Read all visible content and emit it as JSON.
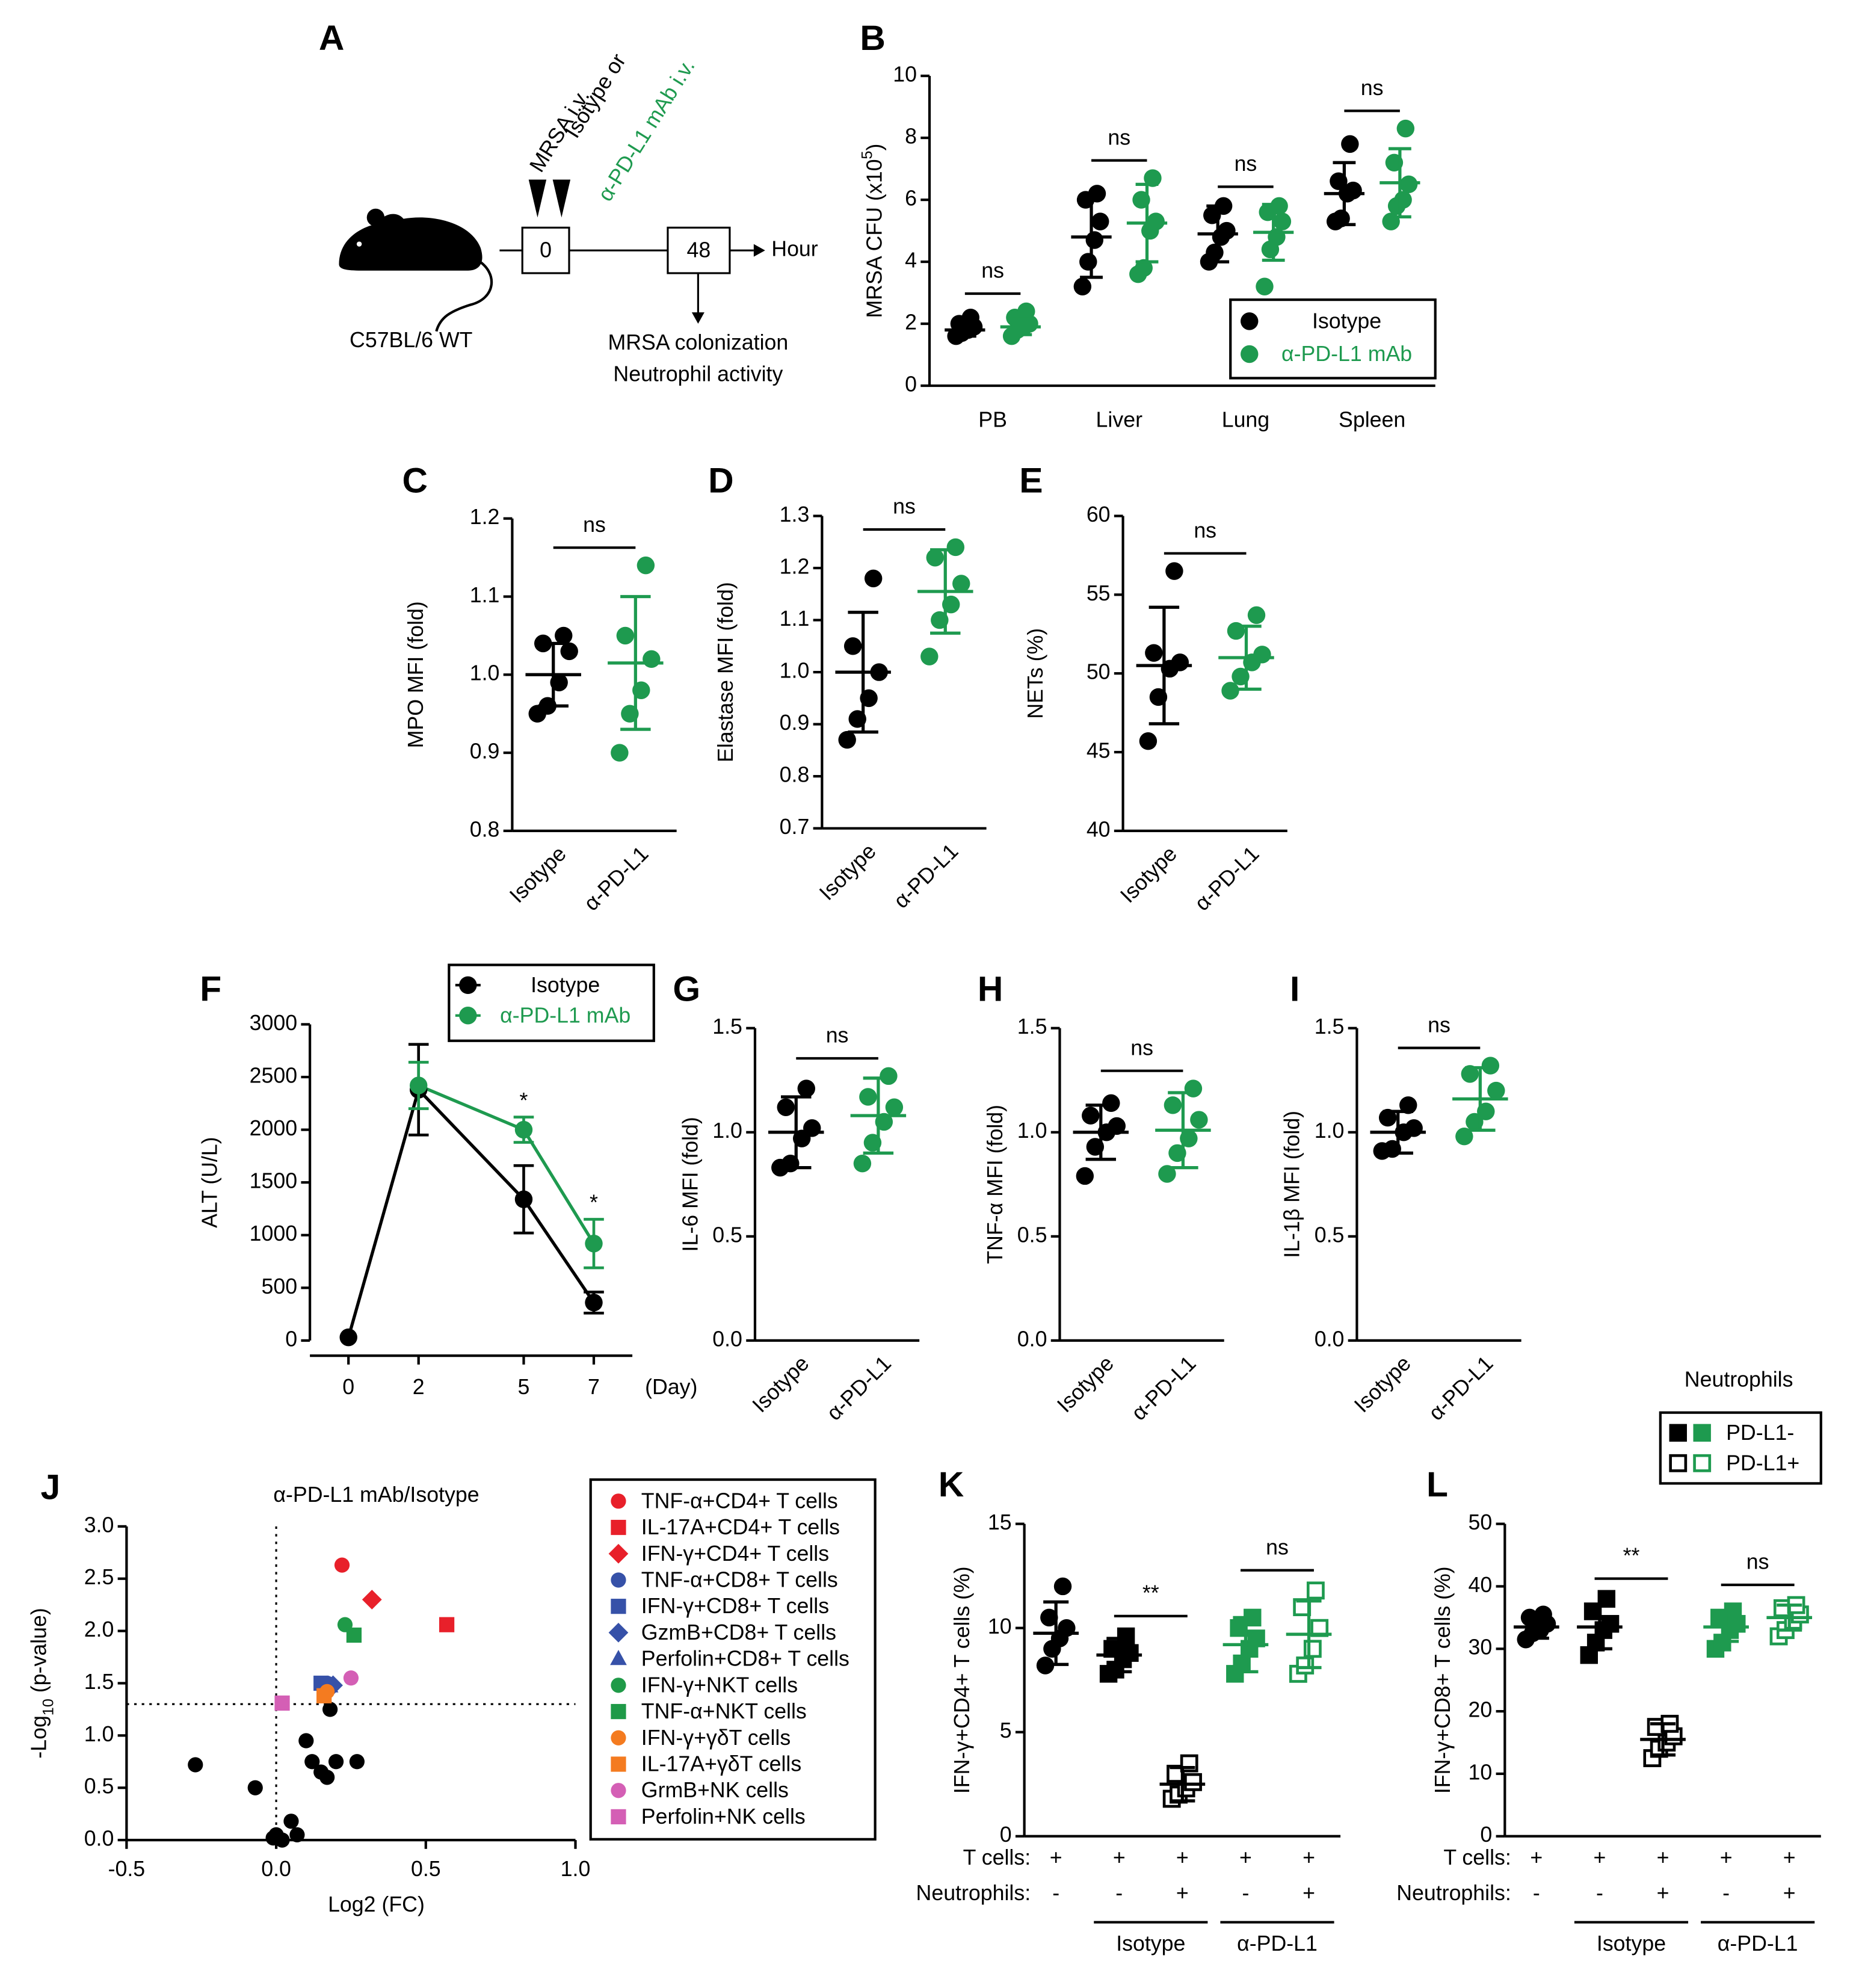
{
  "diagram_a": {
    "panel": "A",
    "strain": "C57BL/6 WT",
    "injection_1": "MRSA i.v.",
    "injection_2_line1": "Isotype or",
    "injection_2_line2": "α-PD-L1 mAb i.v.",
    "time_start": 0,
    "time_end": 48,
    "time_unit": "Hour",
    "readout_1": "MRSA colonization",
    "readout_2": "Neutrophil activity"
  },
  "chart_data": [
    {
      "type": "dot",
      "panel": "B",
      "ylabel": [
        "MRSA CFU (x10",
        "5",
        ")"
      ],
      "categories": [
        "PB",
        "Liver",
        "Lung",
        "Spleen"
      ],
      "ylim": [
        0,
        10
      ],
      "yticks": [
        0,
        2,
        4,
        6,
        8,
        10
      ],
      "legend": "lower right",
      "series": [
        {
          "name": "Isotype",
          "color": "#000000",
          "points": [
            [
              1.6,
              1.7,
              1.8,
              1.9,
              2.0,
              2.2
            ],
            [
              3.2,
              4.0,
              4.7,
              5.3,
              6.0,
              6.2
            ],
            [
              4.0,
              4.3,
              4.8,
              5.0,
              5.5,
              5.8
            ],
            [
              5.3,
              5.4,
              6.2,
              6.3,
              6.6,
              7.8
            ]
          ],
          "mean": [
            1.8,
            4.8,
            4.9,
            6.2
          ],
          "sd": [
            0.2,
            1.3,
            0.9,
            1.0
          ]
        },
        {
          "name": "α-PD-L1 mAb",
          "color": "#1e9a4f",
          "points": [
            [
              1.6,
              1.8,
              1.9,
              2.0,
              2.2,
              2.4
            ],
            [
              3.6,
              3.8,
              5.0,
              5.3,
              6.0,
              6.7
            ],
            [
              3.2,
              4.4,
              4.8,
              5.3,
              5.6,
              5.8
            ],
            [
              5.3,
              5.8,
              6.0,
              6.5,
              7.2,
              8.3
            ]
          ],
          "mean": [
            1.9,
            5.25,
            4.95,
            6.55
          ],
          "sd": [
            0.25,
            1.25,
            0.9,
            1.1
          ]
        }
      ],
      "annotations": [
        "ns",
        "ns",
        "ns",
        "ns"
      ]
    },
    {
      "type": "dot",
      "panel": "C",
      "ylabel": "MPO MFI (fold)",
      "categories": [
        "Isotype",
        "α-PD-L1"
      ],
      "colors": [
        "#000000",
        "#1e9a4f"
      ],
      "ylim": [
        0.8,
        1.2
      ],
      "yticks": [
        0.8,
        0.9,
        {
          "value": 1,
          "label": "1.0"
        },
        1.1,
        1.2
      ],
      "points": [
        [
          0.95,
          0.96,
          0.99,
          1.03,
          1.04,
          1.05
        ],
        [
          0.9,
          0.95,
          0.98,
          1.02,
          1.05,
          1.14
        ]
      ],
      "mean": [
        1.0,
        1.015
      ],
      "sd": [
        0.04,
        0.085
      ],
      "annotation": "ns"
    },
    {
      "type": "dot",
      "panel": "D",
      "ylabel": "Elastase MFI (fold)",
      "categories": [
        "Isotype",
        "α-PD-L1"
      ],
      "colors": [
        "#000000",
        "#1e9a4f"
      ],
      "ylim": [
        0.7,
        1.3
      ],
      "yticks": [
        0.7,
        0.8,
        0.9,
        {
          "value": 1,
          "label": "1.0"
        },
        1.1,
        1.2,
        1.3
      ],
      "points": [
        [
          0.87,
          0.91,
          0.95,
          1.0,
          1.05,
          1.18
        ],
        [
          1.03,
          1.1,
          1.13,
          1.17,
          1.22,
          1.24
        ]
      ],
      "mean": [
        1.0,
        1.155
      ],
      "sd": [
        0.115,
        0.08
      ],
      "annotation": "ns"
    },
    {
      "type": "dot",
      "panel": "E",
      "ylabel": "NETs (%)",
      "categories": [
        "Isotype",
        "α-PD-L1"
      ],
      "colors": [
        "#000000",
        "#1e9a4f"
      ],
      "ylim": [
        40,
        60
      ],
      "yticks": [
        40,
        45,
        50,
        55,
        60
      ],
      "points": [
        [
          45.7,
          48.5,
          50.3,
          50.7,
          51.3,
          56.5
        ],
        [
          48.9,
          49.8,
          50.7,
          51.2,
          52.7,
          53.7
        ]
      ],
      "mean": [
        50.5,
        51.0
      ],
      "sd": [
        3.7,
        2.0
      ],
      "annotation": "ns"
    },
    {
      "type": "line",
      "panel": "F",
      "ylabel": "ALT (U/L)",
      "xlabel": "(Day)",
      "x": [
        0,
        2,
        5,
        7
      ],
      "xlim": [
        -1.1,
        8.1
      ],
      "xticks": [
        0,
        2,
        5,
        7
      ],
      "ylim": [
        0,
        3000
      ],
      "yticks": [
        0,
        500,
        1000,
        1500,
        2000,
        2500,
        3000
      ],
      "legend": "upper right",
      "series": [
        {
          "name": "Isotype",
          "color": "#000000",
          "values": [
            30,
            2380,
            1340,
            360
          ],
          "errors": [
            0,
            430,
            320,
            100
          ]
        },
        {
          "name": "α-PD-L1 mAb",
          "color": "#1e9a4f",
          "values": [
            null,
            2420,
            2000,
            920
          ],
          "errors": [
            null,
            220,
            120,
            230
          ]
        }
      ],
      "annotations": [
        null,
        null,
        "*",
        "*"
      ]
    },
    {
      "type": "dot",
      "panel": "G",
      "ylabel": "IL-6 MFI (fold)",
      "categories": [
        "Isotype",
        "α-PD-L1"
      ],
      "colors": [
        "#000000",
        "#1e9a4f"
      ],
      "ylim": [
        0,
        1.5
      ],
      "yticks": [
        {
          "value": 0,
          "label": "0.0"
        },
        0.5,
        {
          "value": 1,
          "label": "1.0"
        },
        1.5
      ],
      "points": [
        [
          0.83,
          0.85,
          0.97,
          1.02,
          1.12,
          1.21
        ],
        [
          0.85,
          0.95,
          1.05,
          1.12,
          1.17,
          1.27
        ]
      ],
      "mean": [
        1.0,
        1.08
      ],
      "sd": [
        0.17,
        0.18
      ],
      "annotation": "ns"
    },
    {
      "type": "dot",
      "panel": "H",
      "ylabel": "TNF-α MFI (fold)",
      "categories": [
        "Isotype",
        "α-PD-L1"
      ],
      "colors": [
        "#000000",
        "#1e9a4f"
      ],
      "ylim": [
        0,
        1.5
      ],
      "yticks": [
        {
          "value": 0,
          "label": "0.0"
        },
        0.5,
        {
          "value": 1,
          "label": "1.0"
        },
        1.5
      ],
      "points": [
        [
          0.79,
          0.93,
          1.0,
          1.03,
          1.08,
          1.14
        ],
        [
          0.8,
          0.9,
          0.97,
          1.06,
          1.13,
          1.21
        ]
      ],
      "mean": [
        1.0,
        1.01
      ],
      "sd": [
        0.13,
        0.18
      ],
      "annotation": "ns"
    },
    {
      "type": "dot",
      "panel": "I",
      "ylabel": "IL-1β MFI (fold)",
      "categories": [
        "Isotype",
        "α-PD-L1"
      ],
      "colors": [
        "#000000",
        "#1e9a4f"
      ],
      "ylim": [
        0,
        1.5
      ],
      "yticks": [
        {
          "value": 0,
          "label": "0.0"
        },
        0.5,
        {
          "value": 1,
          "label": "1.0"
        },
        1.5
      ],
      "points": [
        [
          0.91,
          0.92,
          1.0,
          1.02,
          1.07,
          1.13
        ],
        [
          0.98,
          1.05,
          1.1,
          1.2,
          1.28,
          1.32
        ]
      ],
      "mean": [
        1.0,
        1.16
      ],
      "sd": [
        0.1,
        0.15
      ],
      "annotation": "ns"
    },
    {
      "type": "scatter",
      "panel": "J",
      "title": "α-PD-L1 mAb/Isotype",
      "xlabel": "Log2 (FC)",
      "ylabel": [
        "-Log",
        "10",
        " (p-value)"
      ],
      "xlim": [
        -0.5,
        1.0
      ],
      "xticks": [
        -0.5,
        {
          "value": 0,
          "label": "0.0"
        },
        0.5,
        {
          "value": 1,
          "label": "1.0"
        }
      ],
      "ylim": [
        0,
        3
      ],
      "yticks": [
        {
          "value": 0,
          "label": "0.0"
        },
        0.5,
        {
          "value": 1,
          "label": "1.0"
        },
        1.5,
        {
          "value": 2,
          "label": "2.0"
        },
        2.5,
        {
          "value": 3,
          "label": "3.0"
        }
      ],
      "threshold_x": 0,
      "threshold_y": 1.3,
      "legend": "right",
      "series": [
        {
          "color": "#000000",
          "marker": "circle",
          "x": [
            -0.27,
            -0.07,
            -0.01,
            0.0,
            0.02,
            0.05,
            0.07,
            0.1,
            0.12,
            0.15,
            0.17,
            0.18,
            0.2,
            0.27
          ],
          "y": [
            0.72,
            0.5,
            0.02,
            0.05,
            0.0,
            0.18,
            0.05,
            0.95,
            0.75,
            0.65,
            0.6,
            1.25,
            0.75,
            0.75
          ]
        },
        {
          "name": "TNF-α+CD4+ T cells",
          "color": "#e8202a",
          "marker": "circle",
          "x": [
            0.22
          ],
          "y": [
            2.63
          ]
        },
        {
          "name": "IL-17A+CD4+ T cells",
          "color": "#e8202a",
          "marker": "square",
          "x": [
            0.57
          ],
          "y": [
            2.06
          ]
        },
        {
          "name": "IFN-γ+CD4+ T cells",
          "color": "#e8202a",
          "marker": "diamond",
          "x": [
            0.32
          ],
          "y": [
            2.3
          ]
        },
        {
          "name": "TNF-α+CD8+ T cells",
          "color": "#3651a8",
          "marker": "circle",
          "x": [
            0.17
          ],
          "y": [
            1.5
          ]
        },
        {
          "name": "IFN-γ+CD8+ T cells",
          "color": "#3651a8",
          "marker": "square",
          "x": [
            0.15
          ],
          "y": [
            1.5
          ]
        },
        {
          "name": "GzmB+CD8+ T cells",
          "color": "#3651a8",
          "marker": "diamond",
          "x": [
            0.19
          ],
          "y": [
            1.48
          ]
        },
        {
          "name": "Perfolin+CD8+ T cells",
          "color": "#3651a8",
          "marker": "triangle",
          "x": [
            0.18
          ],
          "y": [
            1.47
          ]
        },
        {
          "name": "IFN-γ+NKT cells",
          "color": "#1f9a48",
          "marker": "circle",
          "x": [
            0.23
          ],
          "y": [
            2.06
          ]
        },
        {
          "name": "TNF-α+NKT cells",
          "color": "#1f9a48",
          "marker": "square",
          "x": [
            0.26
          ],
          "y": [
            1.96
          ]
        },
        {
          "name": "IFN-γ+γδT cells",
          "color": "#f47b20",
          "marker": "circle",
          "x": [
            0.17
          ],
          "y": [
            1.42
          ]
        },
        {
          "name": "IL-17A+γδT cells",
          "color": "#f47b20",
          "marker": "square",
          "x": [
            0.16
          ],
          "y": [
            1.38
          ]
        },
        {
          "name": "GrmB+NK cells",
          "color": "#d45fb5",
          "marker": "circle",
          "x": [
            0.25
          ],
          "y": [
            1.55
          ]
        },
        {
          "name": "Perfolin+NK cells",
          "color": "#d45fb5",
          "marker": "square",
          "x": [
            0.02
          ],
          "y": [
            1.31
          ]
        }
      ]
    },
    {
      "type": "dot",
      "panel": "K",
      "ylabel": "IFN-γ+CD4+ T cells (%)",
      "ylim": [
        0,
        15
      ],
      "yticks": [
        0,
        5,
        10,
        15
      ],
      "colors": [
        "#000000",
        "#000000",
        "#000000",
        "#1e9a4f",
        "#1e9a4f"
      ],
      "markers": [
        "circle",
        "square",
        "square-open",
        "square",
        "square-open"
      ],
      "points": [
        [
          8.2,
          9.0,
          9.5,
          10.0,
          10.5,
          12.0
        ],
        [
          7.8,
          8.0,
          8.5,
          8.8,
          9.0,
          9.6
        ],
        [
          1.8,
          2.0,
          2.3,
          2.6,
          3.0,
          3.5
        ],
        [
          7.8,
          8.3,
          9.0,
          9.5,
          10.0,
          10.5
        ],
        [
          7.8,
          8.2,
          9.0,
          10.0,
          11.0,
          11.8
        ]
      ],
      "mean": [
        9.75,
        8.7,
        2.5,
        9.2,
        9.7
      ],
      "sd": [
        1.5,
        0.8,
        0.8,
        1.3,
        1.6
      ],
      "annotations": [
        "**",
        "ns"
      ],
      "row_labels": [
        "T cells:",
        "Neutrophils:"
      ],
      "rows": [
        [
          "+",
          "+",
          "+",
          "+",
          "+"
        ],
        [
          "-",
          "-",
          "+",
          "-",
          "+"
        ]
      ],
      "group_labels": [
        "Isotype",
        "α-PD-L1"
      ]
    },
    {
      "type": "dot",
      "panel": "L",
      "ylabel": "IFN-γ+CD8+ T cells (%)",
      "ylim": [
        0,
        50
      ],
      "yticks": [
        0,
        10,
        20,
        30,
        40,
        50
      ],
      "colors": [
        "#000000",
        "#000000",
        "#000000",
        "#1e9a4f",
        "#1e9a4f"
      ],
      "markers": [
        "circle",
        "square",
        "square-open",
        "square",
        "square-open"
      ],
      "points": [
        [
          31.5,
          32.5,
          33,
          34,
          35,
          35.5
        ],
        [
          29,
          31,
          33,
          34,
          36,
          38
        ],
        [
          12.5,
          14,
          15,
          16,
          17.5,
          18
        ],
        [
          30,
          31,
          33,
          34,
          35,
          36
        ],
        [
          32,
          33,
          34.5,
          35.5,
          36.5,
          37
        ]
      ],
      "mean": [
        33.5,
        33.5,
        15.5,
        33.5,
        35
      ],
      "sd": [
        1.8,
        3.5,
        2.5,
        2.3,
        2.0
      ],
      "annotations": [
        "**",
        "ns"
      ],
      "row_labels": [
        "T cells:",
        "Neutrophils:"
      ],
      "rows": [
        [
          "+",
          "+",
          "+",
          "+",
          "+"
        ],
        [
          "-",
          "-",
          "+",
          "-",
          "+"
        ]
      ],
      "group_labels": [
        "Isotype",
        "α-PD-L1"
      ],
      "legend": {
        "title": "Neutrophils",
        "entries": [
          "PD-L1-",
          "PD-L1+"
        ]
      }
    }
  ]
}
